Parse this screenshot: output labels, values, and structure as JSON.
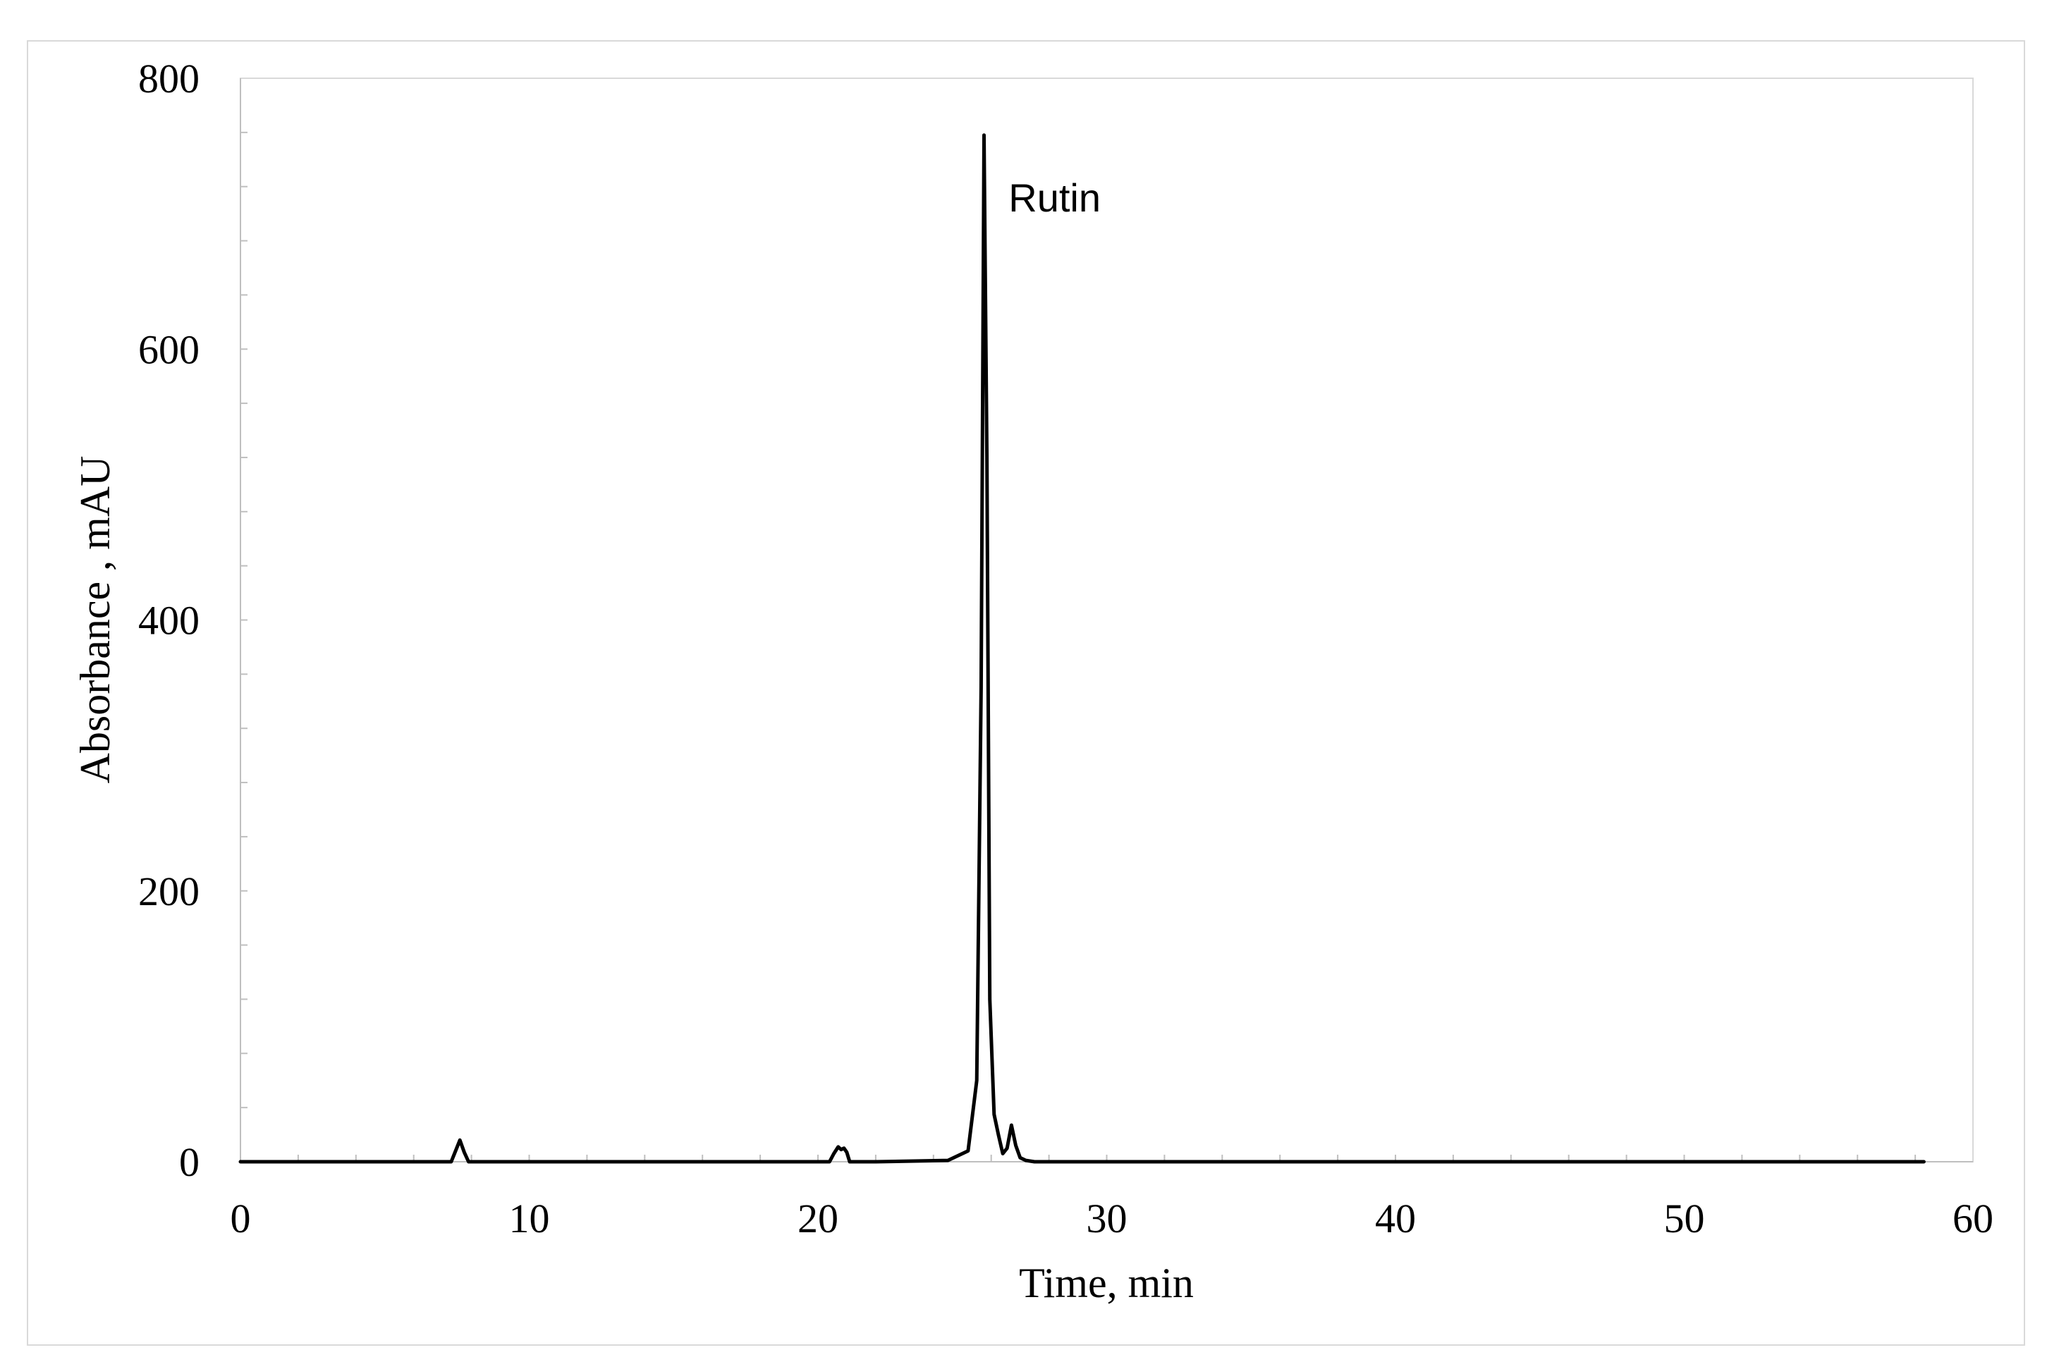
{
  "chart_data": {
    "type": "line",
    "xlabel": "Time, min",
    "ylabel": "Absorbance , mAU",
    "xlim": [
      0,
      60
    ],
    "ylim": [
      0,
      800
    ],
    "x_ticks": [
      0,
      10,
      20,
      30,
      40,
      50,
      60
    ],
    "y_ticks": [
      0,
      200,
      400,
      600,
      800
    ],
    "x_tick_labels": [
      "0",
      "10",
      "20",
      "30",
      "40",
      "50",
      "60"
    ],
    "y_tick_labels": [
      "0",
      "200",
      "400",
      "600",
      "800"
    ],
    "grid": false,
    "legend": "none",
    "line_color": "#000000",
    "series": [
      {
        "x": [
          0,
          7.3,
          7.45,
          7.6,
          7.75,
          7.9,
          20.4,
          20.55,
          20.7,
          20.8,
          20.9,
          21.0,
          21.1,
          22.0,
          24.5,
          25.2,
          25.5,
          25.65,
          25.75,
          25.85,
          25.95,
          26.1,
          26.25,
          26.4,
          26.55,
          26.7,
          26.85,
          27.0,
          27.2,
          27.5,
          28.5,
          30,
          40,
          50,
          58.3
        ],
        "y": [
          0,
          0,
          8,
          16,
          7,
          0,
          0,
          6,
          11,
          9,
          10,
          7,
          0,
          0,
          1,
          8,
          60,
          350,
          758,
          520,
          120,
          35,
          20,
          6,
          10,
          27,
          12,
          3,
          1,
          0,
          0,
          0,
          0,
          0,
          0
        ]
      }
    ],
    "annotations": [
      {
        "text": "Rutin",
        "x": 26.6,
        "y": 712
      }
    ]
  }
}
